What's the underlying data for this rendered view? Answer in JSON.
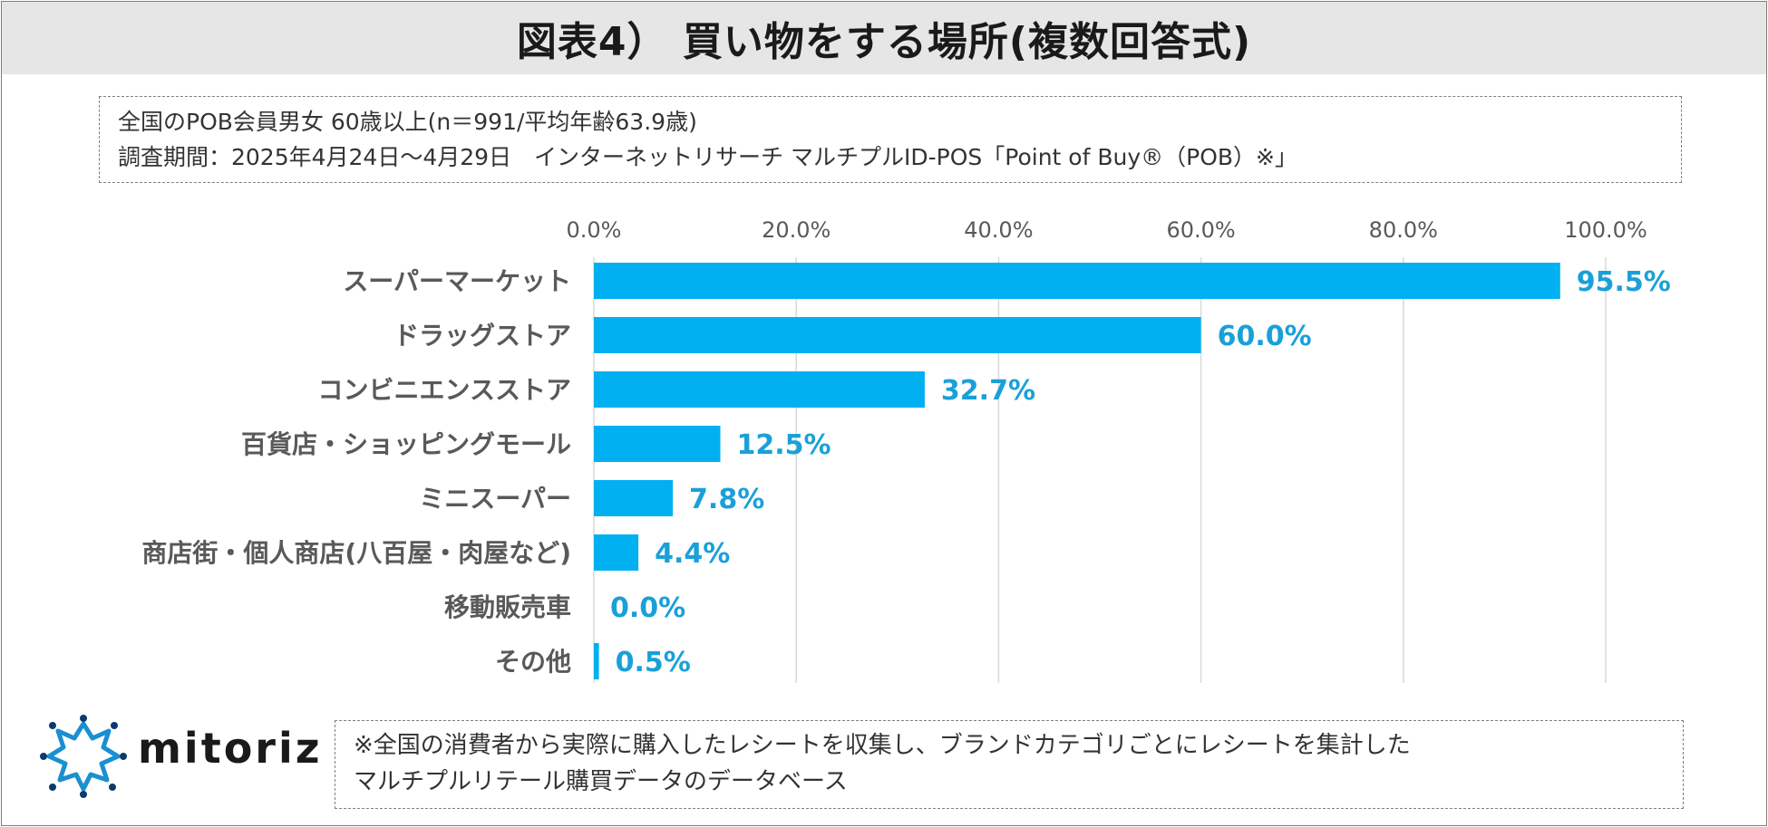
{
  "title": "図表4） 買い物をする場所(複数回答式)",
  "survey": {
    "line1": "全国のPOB会員男女 60歳以上(n＝991/平均年齢63.9歳)",
    "line2": "調査期間：2025年4月24日～4月29日　インターネットリサーチ マルチプルID-POS「Point of Buy®（POB）※」"
  },
  "chart_data": {
    "type": "bar",
    "orientation": "horizontal",
    "title": "買い物をする場所(複数回答式)",
    "categories": [
      "スーパーマーケット",
      "ドラッグストア",
      "コンビニエンスストア",
      "百貨店・ショッピングモール",
      "ミニスーパー",
      "商店街・個人商店(八百屋・肉屋など)",
      "移動販売車",
      "その他"
    ],
    "values": [
      95.5,
      60.0,
      32.7,
      12.5,
      7.8,
      4.4,
      0.0,
      0.5
    ],
    "value_labels": [
      "95.5%",
      "60.0%",
      "32.7%",
      "12.5%",
      "7.8%",
      "4.4%",
      "0.0%",
      "0.5%"
    ],
    "xlim": [
      0,
      100
    ],
    "xticks": [
      0,
      20,
      40,
      60,
      80,
      100
    ],
    "xtick_labels": [
      "0.0%",
      "20.0%",
      "40.0%",
      "60.0%",
      "80.0%",
      "100.0%"
    ],
    "xlabel": "",
    "ylabel": "",
    "grid": true,
    "axis_position": "top",
    "bar_color": "#00b0f0",
    "label_color": "#1aa0d8"
  },
  "logo": {
    "text": "mitoriz",
    "icon": "mitoriz-logo-icon"
  },
  "note": {
    "line1": "※全国の消費者から実際に購入したレシートを収集し、ブランドカテゴリごとにレシートを集計した",
    "line2": "マルチプルリテール購買データのデータベース"
  }
}
